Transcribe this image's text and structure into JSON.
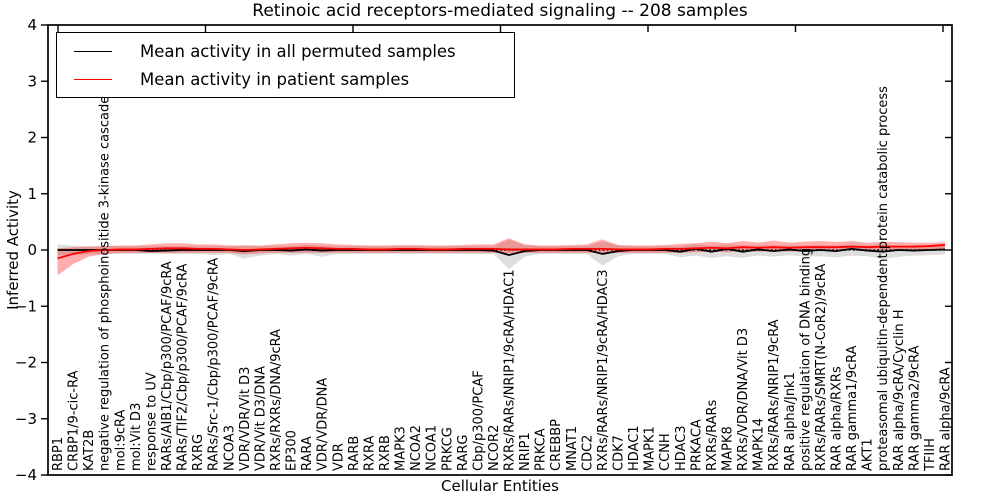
{
  "title": "Retinoic acid receptors-mediated signaling -- 208 samples",
  "legend": {
    "entries": [
      {
        "label": "Mean activity in all permuted samples",
        "color": "#000000"
      },
      {
        "label": "Mean activity in patient samples",
        "color": "#ff0000"
      }
    ]
  },
  "axes": {
    "ylabel": "Inferred Activity",
    "xlabel": "Cellular Entities",
    "ytick_labels": [
      "4",
      "3",
      "2",
      "1",
      "0",
      "−1",
      "−2",
      "−3",
      "−4"
    ],
    "ytick_values": [
      4,
      3,
      2,
      1,
      0,
      -1,
      -2,
      -3,
      -4
    ]
  },
  "chart_data": {
    "type": "line",
    "title": "Retinoic acid receptors-mediated signaling -- 208 samples",
    "xlabel": "Cellular Entities",
    "ylabel": "Inferred Activity",
    "ylim": [
      -4,
      4
    ],
    "grid": false,
    "legend_position": "upper left",
    "zero_line": {
      "style": "dotted",
      "color": "#000000",
      "y": 0
    },
    "categories": [
      "RBP1",
      "CRBP1/9-cic-RA",
      "KAT2B",
      "negative regulation of phosphoinositide 3-kinase cascade",
      "mol:9cRA",
      "mol:Vit D3",
      "response to UV",
      "RARs/AIB1/Cbp/p300/PCAF/9cRA",
      "RARs/TIF2/Cbp/p300/PCAF/9cRA",
      "RXRG",
      "RARs/Src-1/Cbp/p300/PCAF/9cRA",
      "NCOA3",
      "VDR/VDR/Vit D3",
      "VDR/Vit D3/DNA",
      "RXRs/RXRs/DNA/9cRA",
      "EP300",
      "RARA",
      "VDR/VDR/DNA",
      "VDR",
      "RARB",
      "RXRA",
      "RXRB",
      "MAPK3",
      "NCOA2",
      "NCOA1",
      "PRKCG",
      "RARG",
      "Cbp/p300/PCAF",
      "NCOR2",
      "RXRs/RARs/NRIP1/9cRA/HDAC1",
      "NRIP1",
      "PRKCA",
      "CREBBP",
      "MNAT1",
      "CDC2",
      "RXRs/RARs/NRIP1/9cRA/HDAC3",
      "CDK7",
      "HDAC1",
      "MAPK1",
      "CCNH",
      "HDAC3",
      "PRKACA",
      "RXRs/RARs",
      "MAPK8",
      "RXRs/VDR/DNA/Vit D3",
      "MAPK14",
      "RXRs/RARs/NRIP1/9cRA",
      "RAR alpha/Jnk1",
      "positive regulation of DNA binding",
      "RXRs/RARs/SMRT(N-CoR2)/9cRA",
      "RAR alpha/RXRs",
      "RAR gamma1/9cRA",
      "AKT1",
      "proteasomal ubiquitin-dependent protein catabolic process",
      "RAR alpha/9cRA/Cyclin H",
      "RAR gamma2/9cRA",
      "TFIIH",
      "RAR alpha/9cRA"
    ],
    "series": [
      {
        "name": "Mean activity in all permuted samples",
        "color": "#000000",
        "band_opacity": 0.13,
        "values": [
          0,
          0,
          0,
          0,
          0,
          0,
          -0.02,
          -0.01,
          0,
          0,
          0,
          0,
          -0.02,
          0,
          0,
          -0.01,
          0.01,
          -0.01,
          0,
          0,
          0,
          0,
          0,
          0,
          0,
          0,
          0,
          0,
          -0.01,
          -0.09,
          -0.02,
          0,
          0,
          0,
          0,
          -0.07,
          -0.02,
          0,
          0,
          0,
          -0.03,
          0.02,
          -0.03,
          0.02,
          -0.03,
          0.01,
          -0.02,
          0.01,
          -0.02,
          0,
          -0.02,
          0.02,
          -0.01,
          -0.03,
          0,
          -0.01,
          0,
          0.01
        ],
        "band_upper": [
          0.1,
          0.08,
          0.07,
          0.07,
          0.07,
          0.07,
          0.07,
          0.07,
          0.07,
          0.07,
          0.07,
          0.07,
          0.08,
          0.07,
          0.07,
          0.07,
          0.09,
          0.08,
          0.07,
          0.07,
          0.07,
          0.07,
          0.07,
          0.07,
          0.07,
          0.07,
          0.07,
          0.07,
          0.07,
          0.18,
          0.09,
          0.07,
          0.07,
          0.07,
          0.07,
          0.15,
          0.08,
          0.07,
          0.07,
          0.07,
          0.07,
          0.1,
          0.08,
          0.1,
          0.09,
          0.08,
          0.09,
          0.08,
          0.08,
          0.09,
          0.08,
          0.1,
          0.08,
          0.1,
          0.08,
          0.08,
          0.08,
          0.09
        ],
        "band_lower": [
          -0.1,
          -0.08,
          -0.07,
          -0.07,
          -0.07,
          -0.07,
          -0.07,
          -0.07,
          -0.07,
          -0.07,
          -0.09,
          -0.07,
          -0.15,
          -0.1,
          -0.07,
          -0.1,
          -0.07,
          -0.12,
          -0.07,
          -0.07,
          -0.07,
          -0.07,
          -0.07,
          -0.07,
          -0.07,
          -0.07,
          -0.07,
          -0.07,
          -0.07,
          -0.34,
          -0.12,
          -0.07,
          -0.07,
          -0.07,
          -0.07,
          -0.28,
          -0.11,
          -0.07,
          -0.07,
          -0.07,
          -0.13,
          -0.1,
          -0.14,
          -0.11,
          -0.14,
          -0.1,
          -0.12,
          -0.09,
          -0.12,
          -0.11,
          -0.13,
          -0.1,
          -0.11,
          -0.16,
          -0.12,
          -0.1,
          -0.09,
          -0.08
        ]
      },
      {
        "name": "Mean activity in patient samples",
        "color": "#ff0000",
        "band_opacity": 0.32,
        "values": [
          -0.15,
          -0.07,
          -0.02,
          0.0,
          0.01,
          0.01,
          0.02,
          0.03,
          0.03,
          0.02,
          0.02,
          0.01,
          0.0,
          0.01,
          0.02,
          0.03,
          0.04,
          0.03,
          0.02,
          0.02,
          0.01,
          0.01,
          0.02,
          0.02,
          0.01,
          0.01,
          0.02,
          0.02,
          0.02,
          0.01,
          0.01,
          0.01,
          0.01,
          0.02,
          0.02,
          0.02,
          0.01,
          0.01,
          0.01,
          0.02,
          0.02,
          0.03,
          0.04,
          0.03,
          0.05,
          0.04,
          0.05,
          0.04,
          0.05,
          0.05,
          0.05,
          0.06,
          0.05,
          0.06,
          0.06,
          0.06,
          0.07,
          0.09
        ],
        "band_upper": [
          0.03,
          0.05,
          0.06,
          0.07,
          0.08,
          0.08,
          0.1,
          0.12,
          0.12,
          0.1,
          0.1,
          0.08,
          0.08,
          0.08,
          0.1,
          0.12,
          0.13,
          0.12,
          0.1,
          0.09,
          0.08,
          0.08,
          0.09,
          0.09,
          0.08,
          0.08,
          0.09,
          0.1,
          0.1,
          0.21,
          0.1,
          0.08,
          0.08,
          0.09,
          0.1,
          0.19,
          0.09,
          0.08,
          0.08,
          0.09,
          0.11,
          0.12,
          0.15,
          0.12,
          0.16,
          0.13,
          0.17,
          0.13,
          0.15,
          0.16,
          0.14,
          0.16,
          0.13,
          0.15,
          0.14,
          0.13,
          0.13,
          0.14
        ],
        "band_lower": [
          -0.45,
          -0.25,
          -0.12,
          -0.07,
          -0.05,
          -0.05,
          -0.05,
          -0.05,
          -0.05,
          -0.05,
          -0.05,
          -0.05,
          -0.08,
          -0.06,
          -0.05,
          -0.05,
          -0.05,
          -0.05,
          -0.05,
          -0.05,
          -0.05,
          -0.05,
          -0.05,
          -0.05,
          -0.05,
          -0.05,
          -0.05,
          -0.05,
          -0.05,
          -0.06,
          -0.05,
          -0.05,
          -0.05,
          -0.05,
          -0.05,
          -0.05,
          -0.05,
          -0.05,
          -0.05,
          -0.05,
          -0.05,
          -0.04,
          -0.03,
          -0.04,
          -0.02,
          -0.03,
          -0.02,
          -0.03,
          -0.01,
          -0.01,
          -0.01,
          0.0,
          -0.01,
          -0.01,
          0.0,
          0.0,
          0.01,
          0.03
        ]
      }
    ]
  }
}
